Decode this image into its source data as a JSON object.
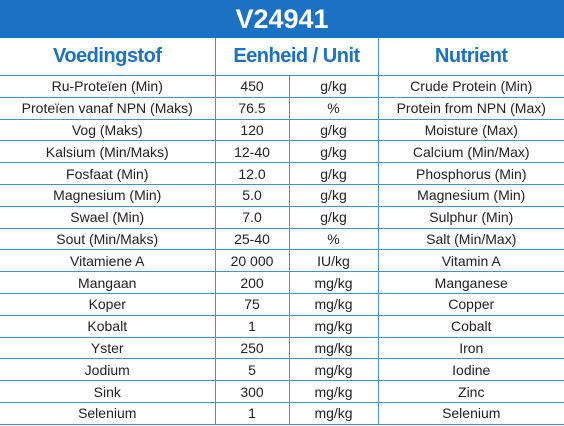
{
  "title": "V24941",
  "table": {
    "header": [
      "Voedingstof",
      "Eenheid / Unit",
      "Nutrient"
    ],
    "rows": [
      [
        "Ru-Proteïen (Min)",
        "450",
        "g/kg",
        "Crude Protein (Min)"
      ],
      [
        "Proteïen vanaf NPN (Maks)",
        "76.5",
        "%",
        "Protein from NPN (Max)"
      ],
      [
        "Vog (Maks)",
        "120",
        "g/kg",
        "Moisture (Max)"
      ],
      [
        "Kalsium (Min/Maks)",
        "12-40",
        "g/kg",
        "Calcium (Min/Max)"
      ],
      [
        "Fosfaat (Min)",
        "12.0",
        "g/kg",
        "Phosphorus (Min)"
      ],
      [
        "Magnesium (Min)",
        "5.0",
        "g/kg",
        "Magnesium (Min)"
      ],
      [
        "Swael (Min)",
        "7.0",
        "g/kg",
        "Sulphur (Min)"
      ],
      [
        "Sout (Min/Maks)",
        "25-40",
        "%",
        "Salt (Min/Max)"
      ],
      [
        "Vitamiene A",
        "20 000",
        "IU/kg",
        "Vitamin A"
      ],
      [
        "Mangaan",
        "200",
        "mg/kg",
        "Manganese"
      ],
      [
        "Koper",
        "75",
        "mg/kg",
        "Copper"
      ],
      [
        "Kobalt",
        "1",
        "mg/kg",
        "Cobalt"
      ],
      [
        "Yster",
        "250",
        "mg/kg",
        "Iron"
      ],
      [
        "Jodium",
        "5",
        "mg/kg",
        "Iodine"
      ],
      [
        "Sink",
        "300",
        "mg/kg",
        "Zinc"
      ],
      [
        "Selenium",
        "1",
        "mg/kg",
        "Selenium"
      ]
    ]
  }
}
